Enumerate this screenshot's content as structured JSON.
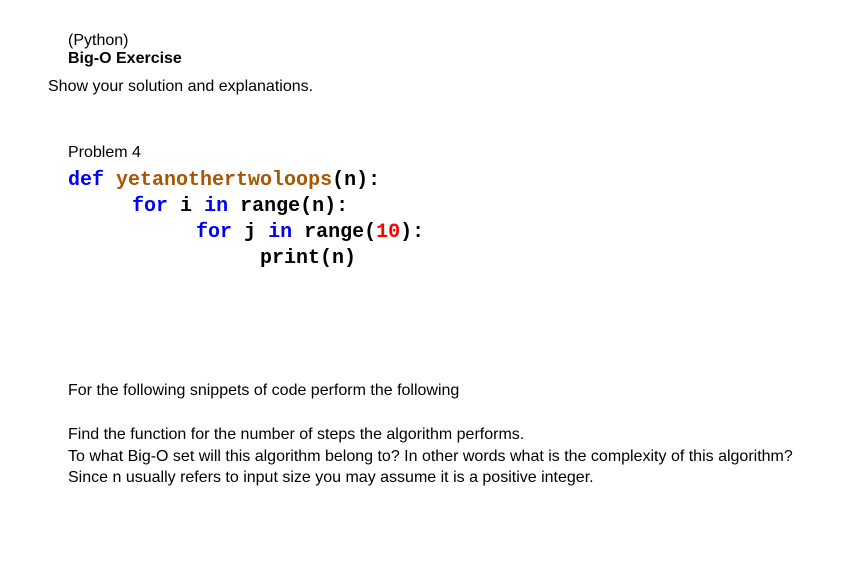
{
  "header": {
    "lang": "(Python)",
    "title": "Big-O Exercise"
  },
  "instruction": "Show your solution and explanations.",
  "problem": {
    "label": "Problem 4",
    "code": {
      "line1": {
        "def": "def",
        "fname": "yetanothertwoloops",
        "open": "(",
        "param": "n",
        "close": "):"
      },
      "line2": {
        "for": "for",
        "var": "i",
        "in": "in",
        "range": "range",
        "open": "(",
        "arg": "n",
        "close": "):"
      },
      "line3": {
        "for": "for",
        "var": "j",
        "in": "in",
        "range": "range",
        "open": "(",
        "arg": "10",
        "close": "):"
      },
      "line4": {
        "print": "print",
        "open": "(",
        "arg": "n",
        "close": ")"
      }
    }
  },
  "questions": {
    "lead": "For the following snippets of code perform the following",
    "q1": "Find the function for the number of steps the algorithm performs.",
    "q2": "To what Big-O set will this algorithm belong to? In other words what is the complexity of this algorithm?",
    "q3": "Since n usually refers to input size you may assume it is a positive integer."
  }
}
